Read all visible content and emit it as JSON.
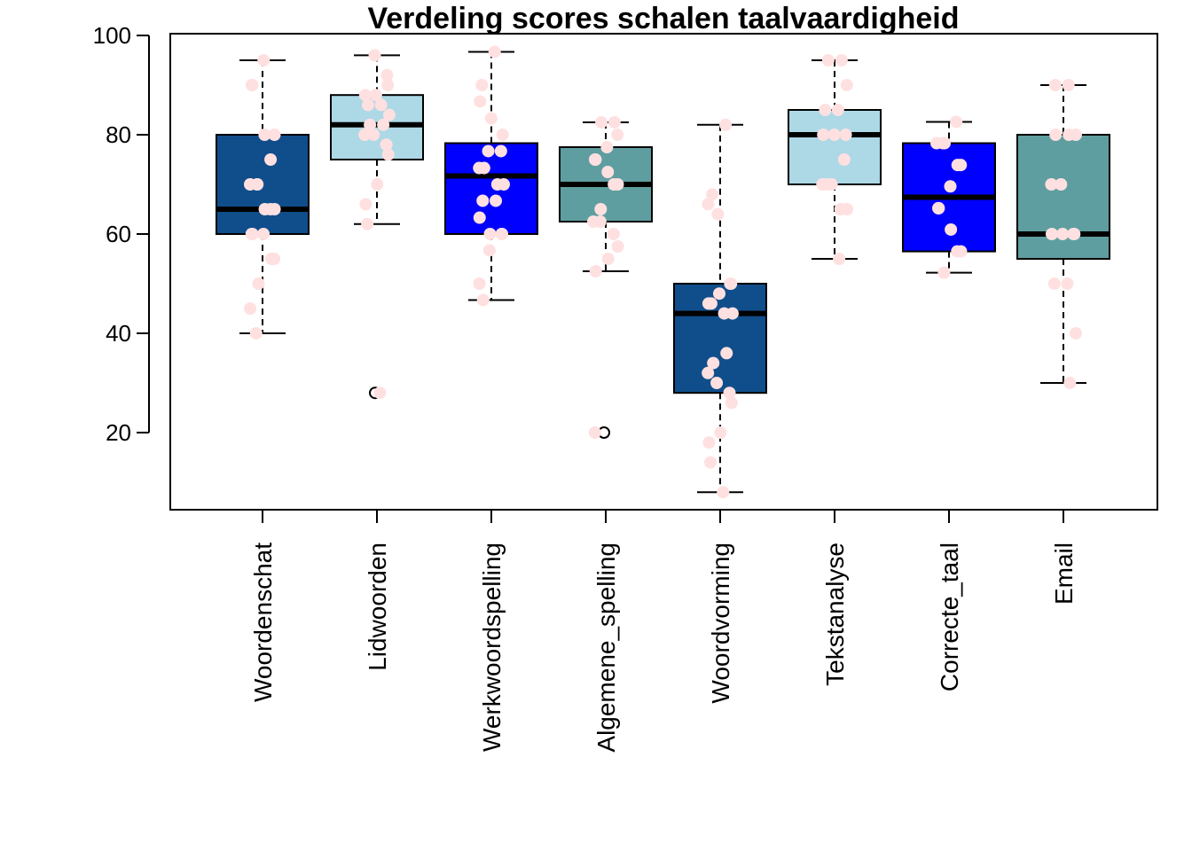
{
  "chart_data": {
    "type": "box",
    "title": "Verdeling scores schalen taalvaardigheid",
    "xlabel": "",
    "ylabel": "",
    "ylim": [
      5,
      100
    ],
    "yticks": [
      20,
      40,
      60,
      80,
      100
    ],
    "grid": false,
    "legend": "none",
    "point_color": "#FFE0E0",
    "categories": [
      "Woordenschat",
      "Lidwoorden",
      "Werkwoordspelling",
      "Algemene_spelling",
      "Woordvorming",
      "Tekstanalyse",
      "Correcte_taal",
      "Email"
    ],
    "boxes": [
      {
        "name": "Woordenschat",
        "color": "#104E8B",
        "whisker_low": 40,
        "q1": 60,
        "median": 65,
        "q3": 80,
        "whisker_high": 95,
        "outliers": [],
        "points": [
          95,
          90,
          90,
          80,
          80,
          75,
          70,
          70,
          70,
          65,
          65,
          65,
          60,
          60,
          60,
          55,
          55,
          50,
          45,
          40
        ]
      },
      {
        "name": "Lidwoorden",
        "color": "#ADD8E6",
        "whisker_low": 62,
        "q1": 75,
        "median": 82,
        "q3": 88,
        "whisker_high": 96,
        "outliers": [
          28
        ],
        "points": [
          96,
          92,
          90,
          88,
          88,
          86,
          86,
          84,
          82,
          82,
          80,
          80,
          78,
          76,
          70,
          66,
          62,
          28
        ]
      },
      {
        "name": "Werkwoordspelling",
        "color": "#0000FF",
        "whisker_low": 46.7,
        "q1": 60,
        "median": 71.7,
        "q3": 78.3,
        "whisker_high": 96.7,
        "outliers": [],
        "points": [
          96.7,
          90,
          86.7,
          83.3,
          80,
          76.7,
          76.7,
          73.3,
          73.3,
          70,
          70,
          66.7,
          66.7,
          63.3,
          60,
          60,
          60,
          56.7,
          50,
          46.7
        ]
      },
      {
        "name": "Algemene_spelling",
        "color": "#5F9EA0",
        "whisker_low": 52.5,
        "q1": 62.5,
        "median": 70,
        "q3": 77.5,
        "whisker_high": 82.5,
        "outliers": [
          20
        ],
        "points": [
          82.5,
          82.5,
          80,
          77.5,
          75,
          75,
          72.5,
          70,
          70,
          65,
          62.5,
          62.5,
          60,
          57.5,
          55,
          52.5,
          20
        ]
      },
      {
        "name": "Woordvorming",
        "color": "#104E8B",
        "whisker_low": 8,
        "q1": 28,
        "median": 44,
        "q3": 50,
        "whisker_high": 82,
        "outliers": [],
        "points": [
          82,
          68,
          66,
          64,
          50,
          50,
          48,
          46,
          46,
          44,
          44,
          36,
          34,
          32,
          30,
          28,
          26,
          20,
          18,
          14,
          8
        ]
      },
      {
        "name": "Tekstanalyse",
        "color": "#ADD8E6",
        "whisker_low": 55,
        "q1": 70,
        "median": 80,
        "q3": 85,
        "whisker_high": 95,
        "outliers": [],
        "points": [
          95,
          95,
          90,
          85,
          85,
          80,
          80,
          80,
          75,
          70,
          70,
          70,
          65,
          65,
          55
        ]
      },
      {
        "name": "Correcte_taal",
        "color": "#0000FF",
        "whisker_low": 52.2,
        "q1": 56.5,
        "median": 67.4,
        "q3": 78.3,
        "whisker_high": 82.6,
        "outliers": [],
        "points": [
          82.6,
          78.3,
          78.3,
          78.3,
          73.9,
          73.9,
          69.6,
          65.2,
          65.2,
          60.9,
          56.5,
          56.5,
          52.2
        ]
      },
      {
        "name": "Email",
        "color": "#5F9EA0",
        "whisker_low": 30,
        "q1": 55,
        "median": 60,
        "q3": 80,
        "whisker_high": 90,
        "outliers": [],
        "points": [
          90,
          90,
          80,
          80,
          80,
          70,
          70,
          60,
          60,
          60,
          60,
          50,
          50,
          40,
          30
        ]
      }
    ]
  }
}
